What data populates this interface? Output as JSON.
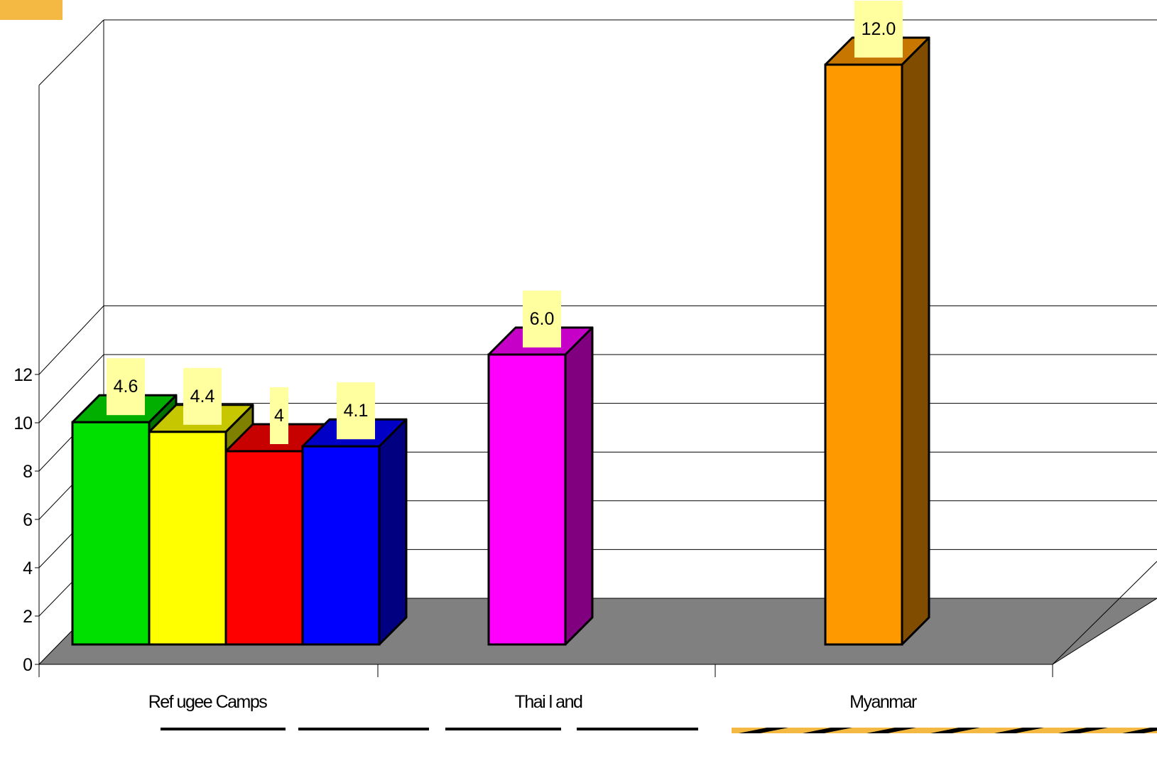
{
  "chart_data": {
    "type": "bar",
    "categories": [
      "Ref ugee Camps",
      "Thai l and",
      "Myanmar"
    ],
    "series": [
      {
        "values": [
          4.6,
          null,
          null
        ],
        "color": "#00e000",
        "labels": [
          "4.6",
          null,
          null
        ]
      },
      {
        "values": [
          4.4,
          null,
          null
        ],
        "color": "#ffff00",
        "labels": [
          "4.4",
          null,
          null
        ]
      },
      {
        "values": [
          4.0,
          null,
          null
        ],
        "color": "#ff0000",
        "labels": [
          "4",
          null,
          null
        ]
      },
      {
        "values": [
          4.1,
          null,
          null
        ],
        "color": "#0000ff",
        "labels": [
          "4.1",
          null,
          null
        ]
      },
      {
        "values": [
          null,
          6.0,
          null
        ],
        "color": "#ff00ff",
        "labels": [
          null,
          "6.0",
          null
        ]
      },
      {
        "values": [
          null,
          null,
          12.0
        ],
        "color": "#ff9900",
        "labels": [
          null,
          null,
          "12.0"
        ]
      }
    ],
    "y_ticks": [
      "0",
      "2",
      "4",
      "6",
      "8",
      "10",
      "12"
    ],
    "ylim": [
      0,
      13
    ],
    "grid": true,
    "style": "3d",
    "floor_color": "#808080",
    "label_background": "#ffffa0",
    "logo_color": "#f4b942"
  }
}
